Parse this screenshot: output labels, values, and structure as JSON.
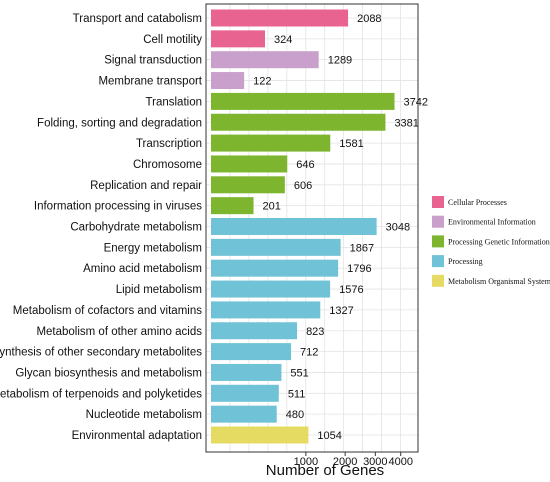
{
  "chart_data": {
    "type": "bar",
    "orientation": "horizontal",
    "xlabel": "Number of Genes",
    "xscale": "sqrt",
    "xlim": [
      0,
      4400
    ],
    "xticks": [
      1000,
      2000,
      3000,
      4000
    ],
    "grid": true,
    "legend_position": "right",
    "groups": [
      {
        "name": "Cellular Processes",
        "color": "#E8638F"
      },
      {
        "name": "Environmental Information",
        "color": "#C9A0CB"
      },
      {
        "name": "Processing Genetic Information",
        "color": "#7DB52F"
      },
      {
        "name": "Processing",
        "color": "#70C3D6"
      },
      {
        "name": "Metabolism Organismal Systems",
        "color": "#E5DB63"
      }
    ],
    "categories": [
      {
        "label": "Transport and catabolism",
        "value": 2088,
        "group": 0
      },
      {
        "label": "Cell motility",
        "value": 324,
        "group": 0
      },
      {
        "label": "Signal transduction",
        "value": 1289,
        "group": 1
      },
      {
        "label": "Membrane transport",
        "value": 122,
        "group": 1
      },
      {
        "label": "Translation",
        "value": 3742,
        "group": 2
      },
      {
        "label": "Folding, sorting and degradation",
        "value": 3381,
        "group": 2
      },
      {
        "label": "Transcription",
        "value": 1581,
        "group": 2
      },
      {
        "label": "Chromosome",
        "value": 646,
        "group": 2
      },
      {
        "label": "Replication and repair",
        "value": 606,
        "group": 2
      },
      {
        "label": "Information processing in viruses",
        "value": 201,
        "group": 2
      },
      {
        "label": "Carbohydrate metabolism",
        "value": 3048,
        "group": 3
      },
      {
        "label": "Energy metabolism",
        "value": 1867,
        "group": 3
      },
      {
        "label": "Amino acid metabolism",
        "value": 1796,
        "group": 3
      },
      {
        "label": "Lipid metabolism",
        "value": 1576,
        "group": 3
      },
      {
        "label": "Metabolism of cofactors and vitamins",
        "value": 1327,
        "group": 3
      },
      {
        "label": "Metabolism of other amino acids",
        "value": 823,
        "group": 3
      },
      {
        "label": "Biosynthesis of other secondary metabolites",
        "value": 712,
        "group": 3
      },
      {
        "label": "Glycan biosynthesis and metabolism",
        "value": 551,
        "group": 3
      },
      {
        "label": "Metabolism of terpenoids and polyketides",
        "value": 511,
        "group": 3
      },
      {
        "label": "Nucleotide metabolism",
        "value": 480,
        "group": 3
      },
      {
        "label": "Environmental adaptation",
        "value": 1054,
        "group": 4
      }
    ]
  }
}
